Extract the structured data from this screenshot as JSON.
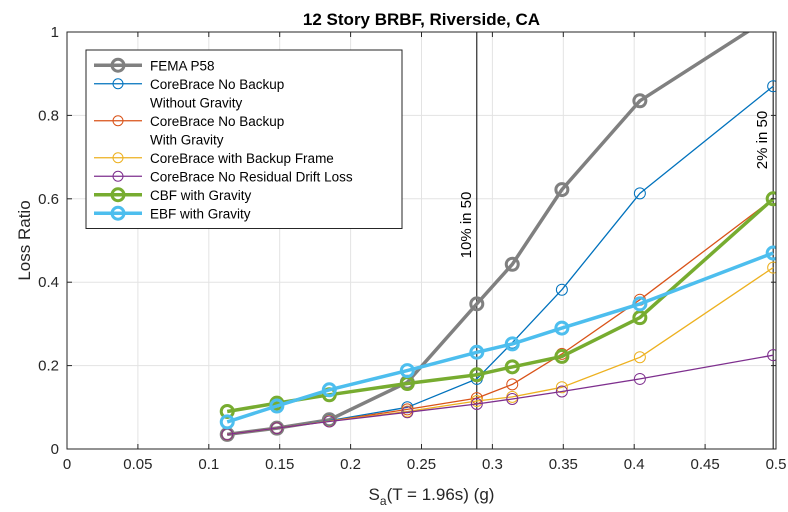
{
  "chart_data": {
    "type": "line",
    "title": "12 Story BRBF, Riverside, CA",
    "xlabel_main": "S",
    "xlabel_sub": "a",
    "xlabel_rest": "(T = 1.96s) (g)",
    "ylabel": "Loss Ratio",
    "xlim": [
      0,
      0.5
    ],
    "ylim": [
      0,
      1
    ],
    "xticks": [
      0,
      0.05,
      0.1,
      0.15,
      0.2,
      0.25,
      0.3,
      0.35,
      0.4,
      0.45,
      0.5
    ],
    "xtick_labels": [
      "0",
      "0.05",
      "0.1",
      "0.15",
      "0.2",
      "0.25",
      "0.3",
      "0.35",
      "0.4",
      "0.45",
      "0.5"
    ],
    "yticks": [
      0,
      0.2,
      0.4,
      0.6,
      0.8,
      1
    ],
    "ytick_labels": [
      "0",
      "0.2",
      "0.4",
      "0.6",
      "0.8",
      "1"
    ],
    "grid": true,
    "legend_position": "top-left",
    "x": [
      0.113,
      0.148,
      0.185,
      0.24,
      0.289,
      0.314,
      0.349,
      0.404,
      0.498
    ],
    "series": [
      {
        "name": "FEMA P58",
        "name_lines": [
          "FEMA P58"
        ],
        "color": "#808080",
        "width": 3.5,
        "values": [
          0.035,
          0.05,
          0.07,
          0.16,
          0.348,
          0.443,
          0.622,
          0.835,
          1.04
        ]
      },
      {
        "name": "CoreBrace No Backup Without Gravity",
        "name_lines": [
          "CoreBrace No Backup",
          "Without Gravity"
        ],
        "color": "#0072BD",
        "width": 1.3,
        "values": [
          0.035,
          0.05,
          0.068,
          0.1,
          0.168,
          0.255,
          0.382,
          0.613,
          0.87
        ]
      },
      {
        "name": "CoreBrace No Backup With Gravity",
        "name_lines": [
          "CoreBrace No Backup",
          "With Gravity"
        ],
        "color": "#D95319",
        "width": 1.3,
        "values": [
          0.035,
          0.05,
          0.067,
          0.095,
          0.122,
          0.155,
          0.228,
          0.358,
          0.6
        ]
      },
      {
        "name": "CoreBrace with Backup Frame",
        "name_lines": [
          "CoreBrace with Backup Frame"
        ],
        "color": "#EDB120",
        "width": 1.3,
        "values": [
          0.035,
          0.05,
          0.067,
          0.09,
          0.115,
          0.125,
          0.148,
          0.22,
          0.435
        ]
      },
      {
        "name": "CoreBrace No Residual Drift Loss",
        "name_lines": [
          "CoreBrace No Residual Drift Loss"
        ],
        "color": "#7E2F8E",
        "width": 1.3,
        "values": [
          0.035,
          0.05,
          0.066,
          0.088,
          0.108,
          0.12,
          0.138,
          0.168,
          0.225
        ]
      },
      {
        "name": "CBF with Gravity",
        "name_lines": [
          "CBF with Gravity"
        ],
        "color": "#77AC30",
        "width": 3.5,
        "values": [
          0.09,
          0.11,
          0.13,
          0.157,
          0.178,
          0.197,
          0.222,
          0.315,
          0.6
        ]
      },
      {
        "name": "EBF with Gravity",
        "name_lines": [
          "EBF with Gravity"
        ],
        "color": "#4DBEEE",
        "width": 3.5,
        "values": [
          0.065,
          0.103,
          0.142,
          0.188,
          0.232,
          0.252,
          0.29,
          0.348,
          0.47
        ]
      }
    ],
    "annotations": [
      {
        "x": 0.289,
        "label": "10% in 50"
      },
      {
        "x": 0.498,
        "label": "2% in 50"
      }
    ]
  }
}
